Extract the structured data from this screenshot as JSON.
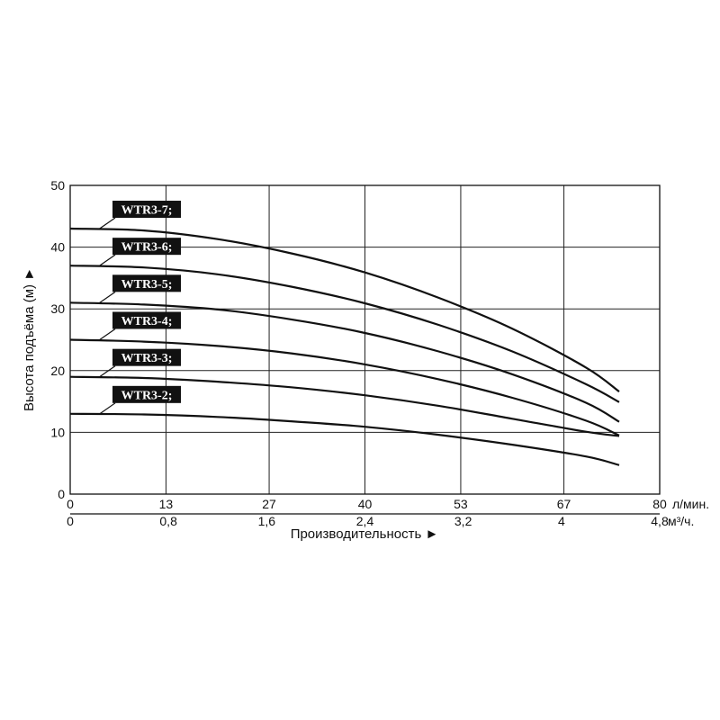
{
  "chart_data": {
    "type": "line",
    "title": "",
    "xlabel": "Производительность ►",
    "ylabel": "Высота подъёма (м) ►",
    "x_unit_primary": "л/мин.",
    "x_unit_secondary": "м³/ч.",
    "xlim": [
      0,
      80
    ],
    "ylim": [
      0,
      50
    ],
    "grid": true,
    "x_ticks_primary": [
      {
        "value": 0,
        "label": "0"
      },
      {
        "value": 13,
        "label": "13"
      },
      {
        "value": 27,
        "label": "27"
      },
      {
        "value": 40,
        "label": "40"
      },
      {
        "value": 53,
        "label": "53"
      },
      {
        "value": 67,
        "label": "67"
      },
      {
        "value": 80,
        "label": "80"
      }
    ],
    "x_ticks_secondary": [
      {
        "value": 0,
        "label": "0"
      },
      {
        "value": 13.33,
        "label": "0,8"
      },
      {
        "value": 26.67,
        "label": "1,6"
      },
      {
        "value": 40,
        "label": "2,4"
      },
      {
        "value": 53.33,
        "label": "3,2"
      },
      {
        "value": 66.67,
        "label": "4"
      },
      {
        "value": 80,
        "label": "4,8"
      }
    ],
    "y_ticks": [
      0,
      10,
      20,
      30,
      40,
      50
    ],
    "series": [
      {
        "name": "WTR3-7;",
        "x": [
          0,
          10,
          20,
          30,
          40,
          50,
          60,
          70,
          74.5
        ],
        "y": [
          43,
          42.7,
          41.3,
          39,
          35.9,
          31.8,
          26.8,
          20.5,
          16.6
        ]
      },
      {
        "name": "WTR3-6;",
        "x": [
          0,
          10,
          20,
          30,
          40,
          50,
          60,
          70,
          74.5
        ],
        "y": [
          37,
          36.7,
          35.6,
          33.6,
          30.9,
          27.4,
          23.1,
          17.8,
          14.9
        ]
      },
      {
        "name": "WTR3-5;",
        "x": [
          0,
          10,
          20,
          30,
          40,
          50,
          60,
          70,
          74.5
        ],
        "y": [
          31,
          30.7,
          29.9,
          28.3,
          26.1,
          23.1,
          19.4,
          14.8,
          11.7
        ]
      },
      {
        "name": "WTR3-4;",
        "x": [
          0,
          10,
          20,
          30,
          40,
          50,
          60,
          70,
          74.5
        ],
        "y": [
          25,
          24.7,
          24.0,
          22.8,
          21.0,
          18.6,
          15.6,
          11.9,
          9.5
        ]
      },
      {
        "name": "WTR3-3;",
        "x": [
          0,
          10,
          20,
          30,
          40,
          50,
          60,
          70,
          74.5
        ],
        "y": [
          19,
          18.8,
          18.2,
          17.3,
          16.0,
          14.3,
          12.2,
          10.1,
          9.4
        ]
      },
      {
        "name": "WTR3-2;",
        "x": [
          0,
          10,
          20,
          30,
          40,
          50,
          60,
          70,
          74.5
        ],
        "y": [
          13,
          12.9,
          12.5,
          11.8,
          10.9,
          9.6,
          8.0,
          6.1,
          4.7
        ]
      }
    ]
  }
}
